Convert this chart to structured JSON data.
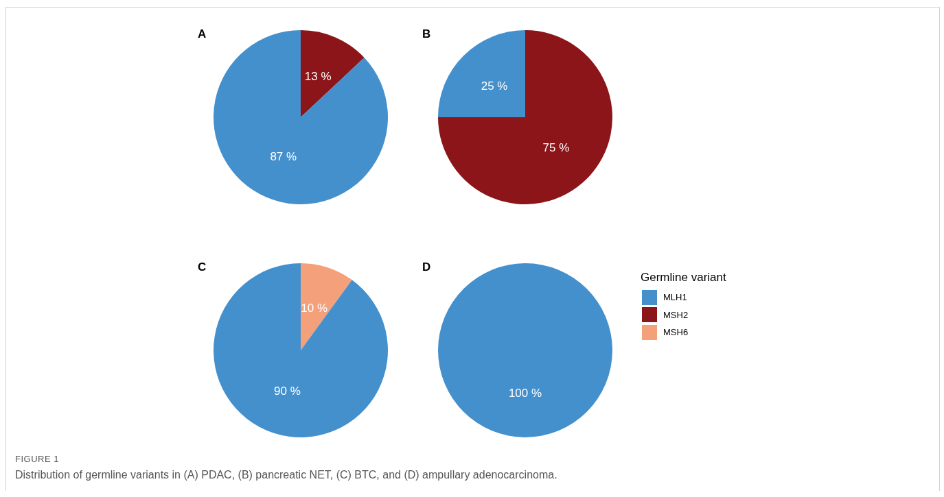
{
  "chart_data": [
    {
      "type": "pie",
      "title": "A",
      "categories": [
        "MLH1",
        "MSH2",
        "MSH6"
      ],
      "values": [
        87,
        13,
        0
      ],
      "colors": [
        "#4490cd",
        "#8b1518",
        "#f4a07a"
      ],
      "value_labels": [
        "87 %",
        "13 %",
        null
      ],
      "legend": "right",
      "legend_title": "Germline variant",
      "annotations": [
        "FIGURE 1",
        "Distribution of germline variants in (A) PDAC, (B) pancreatic NET, (C) BTC, and (D) ampullary adenocarcinoma."
      ]
    },
    {
      "type": "pie",
      "title": "B",
      "categories": [
        null,
        null,
        null
      ],
      "values": [
        25,
        75,
        0
      ],
      "colors": [
        "#4490cd",
        "#8b1518",
        "#f4a07a"
      ],
      "value_labels": [
        "25 %",
        "75 %",
        null
      ]
    },
    {
      "type": "pie",
      "title": "C",
      "categories": [
        null,
        null,
        null
      ],
      "values": [
        90,
        0,
        10
      ],
      "colors": [
        "#4490cd",
        "#8b1518",
        "#f4a07a"
      ],
      "value_labels": [
        "90 %",
        null,
        "10 %"
      ]
    },
    {
      "type": "pie",
      "title": "D",
      "categories": [
        null,
        null,
        null
      ],
      "values": [
        100,
        0,
        0
      ],
      "colors": [
        "#4490cd",
        "#8b1518",
        "#f4a07a"
      ],
      "value_labels": [
        "100 %",
        null,
        null
      ]
    }
  ]
}
